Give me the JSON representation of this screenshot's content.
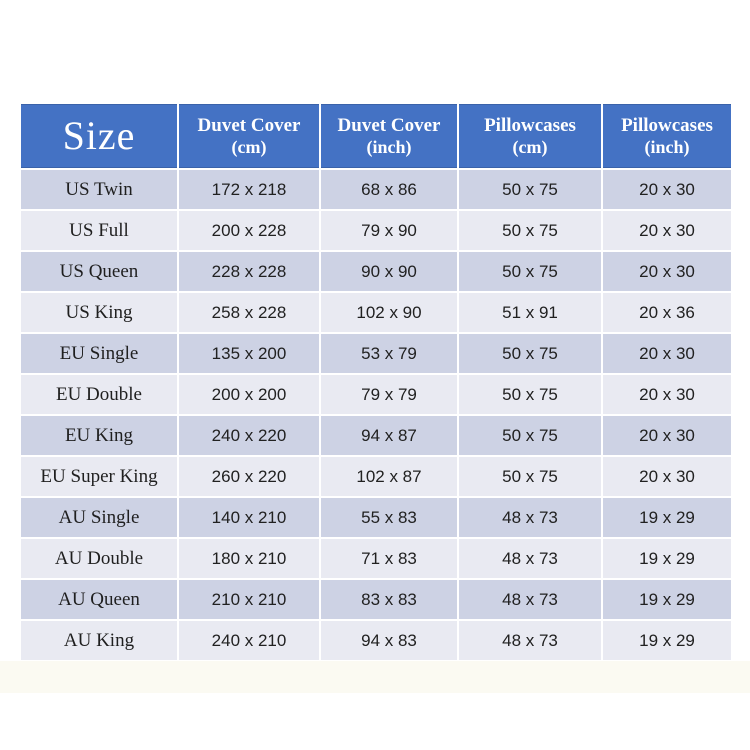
{
  "colors": {
    "header_bg": "#4472C4",
    "header_text": "#FFFFFF",
    "row_band_dark": "#CDD2E4",
    "row_band_light": "#E9EAF2",
    "body_text": "#1F1F1F"
  },
  "chart_data": {
    "type": "table",
    "title": "",
    "legend": "none",
    "grid": "banded-rows",
    "columns": [
      {
        "title": "Size",
        "unit": ""
      },
      {
        "title": "Duvet Cover",
        "unit": "(cm)"
      },
      {
        "title": "Duvet Cover",
        "unit": "(inch)"
      },
      {
        "title": "Pillowcases",
        "unit": "(cm)"
      },
      {
        "title": "Pillowcases",
        "unit": "(inch)"
      }
    ],
    "rows": [
      {
        "size": "US Twin",
        "duvet_cm": "172 x 218",
        "duvet_inch": "68 x 86",
        "pillow_cm": "50 x 75",
        "pillow_inch": "20 x 30"
      },
      {
        "size": "US Full",
        "duvet_cm": "200 x 228",
        "duvet_inch": "79 x 90",
        "pillow_cm": "50 x 75",
        "pillow_inch": "20 x 30"
      },
      {
        "size": "US Queen",
        "duvet_cm": "228 x 228",
        "duvet_inch": "90 x 90",
        "pillow_cm": "50 x 75",
        "pillow_inch": "20 x 30"
      },
      {
        "size": "US King",
        "duvet_cm": "258 x 228",
        "duvet_inch": "102 x 90",
        "pillow_cm": "51 x 91",
        "pillow_inch": "20 x 36"
      },
      {
        "size": "EU Single",
        "duvet_cm": "135 x 200",
        "duvet_inch": "53 x 79",
        "pillow_cm": "50 x 75",
        "pillow_inch": "20 x 30"
      },
      {
        "size": "EU Double",
        "duvet_cm": "200 x 200",
        "duvet_inch": "79 x 79",
        "pillow_cm": "50 x 75",
        "pillow_inch": "20 x 30"
      },
      {
        "size": "EU King",
        "duvet_cm": "240 x 220",
        "duvet_inch": "94 x 87",
        "pillow_cm": "50 x 75",
        "pillow_inch": "20 x 30"
      },
      {
        "size": "EU Super King",
        "duvet_cm": "260 x 220",
        "duvet_inch": "102 x 87",
        "pillow_cm": "50 x 75",
        "pillow_inch": "20 x 30"
      },
      {
        "size": "AU Single",
        "duvet_cm": "140 x 210",
        "duvet_inch": "55 x 83",
        "pillow_cm": "48 x 73",
        "pillow_inch": "19 x 29"
      },
      {
        "size": "AU Double",
        "duvet_cm": "180 x 210",
        "duvet_inch": "71 x 83",
        "pillow_cm": "48 x 73",
        "pillow_inch": "19 x 29"
      },
      {
        "size": "AU Queen",
        "duvet_cm": "210 x 210",
        "duvet_inch": "83 x 83",
        "pillow_cm": "48 x 73",
        "pillow_inch": "19 x 29"
      },
      {
        "size": "AU King",
        "duvet_cm": "240 x 210",
        "duvet_inch": "94 x 83",
        "pillow_cm": "48 x 73",
        "pillow_inch": "19 x 29"
      }
    ]
  }
}
